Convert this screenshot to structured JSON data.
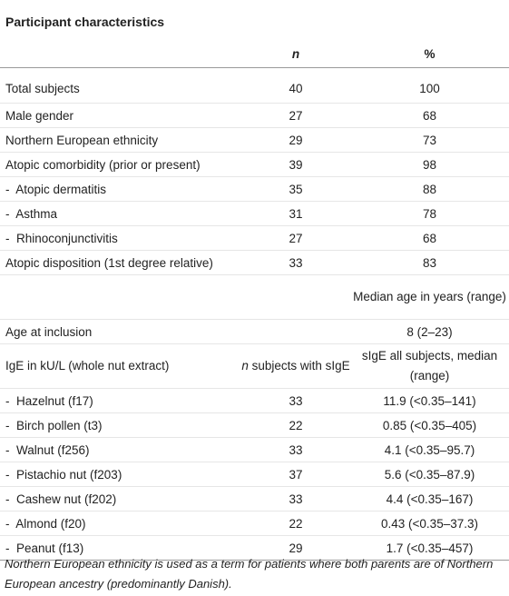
{
  "table": {
    "title": "Participant characteristics",
    "header": [
      null,
      "n",
      "%"
    ],
    "rows": [
      [
        "Total subjects",
        40,
        100
      ],
      [
        "Male gender",
        27,
        68
      ],
      [
        "Northern European ethnicity",
        29,
        73
      ],
      [
        "Atopic comorbidity (prior or present)",
        39,
        98
      ],
      [
        "-  Atopic dermatitis",
        35,
        88
      ],
      [
        "-  Asthma",
        31,
        78
      ],
      [
        "-  Rhinoconjunctivitis",
        27,
        68
      ],
      [
        "Atopic disposition (1st degree relative)",
        33,
        83
      ],
      [
        null,
        null,
        "Median age in years (range)"
      ],
      [
        "Age at inclusion",
        null,
        "8 (2–23)"
      ],
      [
        "IgE in kU/L (whole nut extract)",
        [
          "n",
          "subjects with sIgE"
        ],
        "sIgE all subjects, median (range)"
      ],
      [
        "-  Hazelnut (f17)",
        33,
        "11.9 (<0.35–141)"
      ],
      [
        "-  Birch pollen (t3)",
        22,
        "0.85 (<0.35–405)"
      ],
      [
        "-  Walnut (f256)",
        33,
        "4.1 (<0.35–95.7)"
      ],
      [
        "-  Pistachio nut (f203)",
        37,
        "5.6 (<0.35–87.9)"
      ],
      [
        "-  Cashew nut (f202)",
        33,
        "4.4 (<0.35–167)"
      ],
      [
        "-  Almond (f20)",
        22,
        "0.43 (<0.35–37.3)"
      ],
      [
        "-  Peanut (f13)",
        29,
        "1.7 (<0.35–457)"
      ]
    ],
    "footnote": "Northern European ethnicity is used as a term for patients where both parents are of Northern European ancestry (predominantly Danish)."
  }
}
